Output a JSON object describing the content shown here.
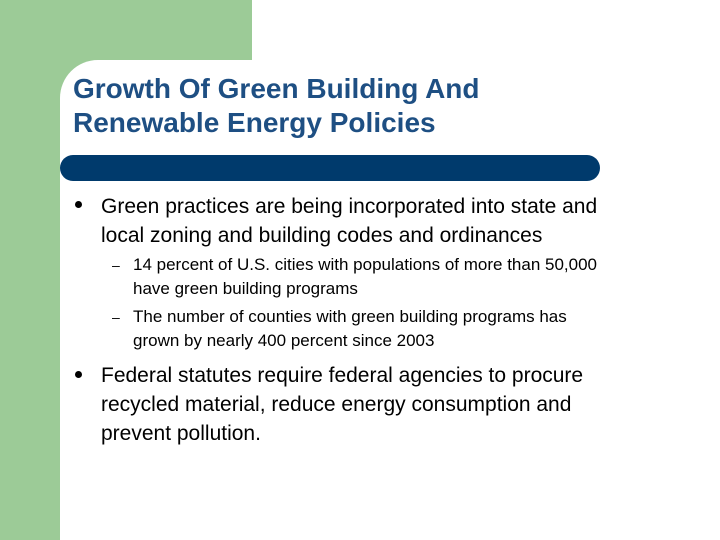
{
  "slide": {
    "title_lines": [
      "Growth Of Green Building And",
      "Renewable Energy Policies"
    ],
    "bullets": [
      {
        "lines": [
          "Green practices are being incorporated into state and",
          "local zoning and building codes and ordinances"
        ],
        "sub": [
          {
            "lines": [
              "14 percent of U.S. cities with populations of more than 50,000",
              "have green building programs"
            ]
          },
          {
            "lines": [
              "The number of counties with green building programs has",
              "grown by nearly 400 percent since 2003"
            ]
          }
        ]
      },
      {
        "lines": [
          "Federal statutes require federal agencies to procure",
          "recycled material, reduce energy consumption and",
          "prevent pollution."
        ],
        "sub": []
      }
    ],
    "bullet_symbol": "filled-circle",
    "sub_bullet_symbol": "–"
  },
  "colors": {
    "accent_green": "#9ccb97",
    "title_color": "#1e4f83",
    "title_bar": "#003a6c"
  }
}
